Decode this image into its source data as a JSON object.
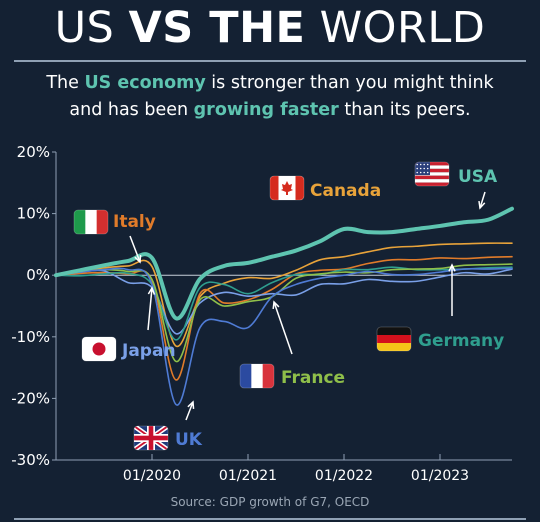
{
  "header": {
    "title_part1": "US ",
    "title_part2": "VS THE",
    "title_part3": " WORLD",
    "subtitle_line1_a": "The ",
    "subtitle_line1_hl": "US economy",
    "subtitle_line1_b": " is stronger than you might think",
    "subtitle_line2_a": "and has been ",
    "subtitle_line2_hl": "growing faster",
    "subtitle_line2_b": " than its peers."
  },
  "source": "Source: GDP growth of G7, OECD",
  "colors": {
    "background": "#142133",
    "accent": "#5ec4b0",
    "usa": "#5ec4b0",
    "canada": "#e8a33a",
    "italy": "#e07b2a",
    "japan": "#7aa0e8",
    "germany": "#2f9e8e",
    "france": "#8fbf4a",
    "uk": "#4f7bd4"
  },
  "chart_data": {
    "type": "line",
    "xlabel": "",
    "ylabel": "",
    "ylim": [
      -30,
      20
    ],
    "xlim": [
      "2019-01",
      "2023-10"
    ],
    "y_ticks": [
      "20%",
      "10%",
      "0%",
      "-10%",
      "-20%",
      "-30%"
    ],
    "y_tick_values": [
      20,
      10,
      0,
      -10,
      -20,
      -30
    ],
    "x_ticks": [
      "01/2020",
      "01/2021",
      "01/2022",
      "01/2023"
    ],
    "x_tick_values": [
      "2020-01",
      "2021-01",
      "2022-01",
      "2023-01"
    ],
    "grid": false,
    "series": [
      {
        "name": "USA",
        "key": "usa",
        "flag": "us-flag-icon",
        "emphasis": true,
        "points": [
          [
            "2019-01",
            0
          ],
          [
            "2019-04",
            0.8
          ],
          [
            "2019-07",
            1.6
          ],
          [
            "2019-10",
            2.3
          ],
          [
            "2020-01",
            2.8
          ],
          [
            "2020-04",
            -7.0
          ],
          [
            "2020-07",
            -0.6
          ],
          [
            "2020-10",
            1.5
          ],
          [
            "2021-01",
            2.0
          ],
          [
            "2021-04",
            3.0
          ],
          [
            "2021-07",
            4.0
          ],
          [
            "2021-10",
            5.5
          ],
          [
            "2022-01",
            7.5
          ],
          [
            "2022-04",
            7.0
          ],
          [
            "2022-07",
            7.0
          ],
          [
            "2022-10",
            7.5
          ],
          [
            "2023-01",
            8.0
          ],
          [
            "2023-04",
            8.6
          ],
          [
            "2023-07",
            9.0
          ],
          [
            "2023-10",
            10.8
          ]
        ]
      },
      {
        "name": "Canada",
        "key": "canada",
        "flag": "canada-flag-icon",
        "points": [
          [
            "2019-01",
            0
          ],
          [
            "2019-04",
            0.7
          ],
          [
            "2019-07",
            1.2
          ],
          [
            "2019-10",
            1.5
          ],
          [
            "2020-01",
            1.4
          ],
          [
            "2020-04",
            -11.5
          ],
          [
            "2020-07",
            -3.5
          ],
          [
            "2020-10",
            -1.3
          ],
          [
            "2021-01",
            -0.4
          ],
          [
            "2021-04",
            -0.5
          ],
          [
            "2021-07",
            0.8
          ],
          [
            "2021-10",
            2.5
          ],
          [
            "2022-01",
            3.0
          ],
          [
            "2022-04",
            3.8
          ],
          [
            "2022-07",
            4.5
          ],
          [
            "2022-10",
            4.7
          ],
          [
            "2023-01",
            5.0
          ],
          [
            "2023-04",
            5.1
          ],
          [
            "2023-07",
            5.2
          ],
          [
            "2023-10",
            5.2
          ]
        ]
      },
      {
        "name": "Italy",
        "key": "italy",
        "flag": "italy-flag-icon",
        "points": [
          [
            "2019-01",
            0
          ],
          [
            "2019-04",
            0.3
          ],
          [
            "2019-07",
            0.4
          ],
          [
            "2019-10",
            0.2
          ],
          [
            "2020-01",
            -0.8
          ],
          [
            "2020-04",
            -17.0
          ],
          [
            "2020-07",
            -3.0
          ],
          [
            "2020-10",
            -4.5
          ],
          [
            "2021-01",
            -4.0
          ],
          [
            "2021-04",
            -2.3
          ],
          [
            "2021-07",
            0.2
          ],
          [
            "2021-10",
            0.8
          ],
          [
            "2022-01",
            1.0
          ],
          [
            "2022-04",
            1.9
          ],
          [
            "2022-07",
            2.5
          ],
          [
            "2022-10",
            2.5
          ],
          [
            "2023-01",
            2.8
          ],
          [
            "2023-04",
            2.7
          ],
          [
            "2023-07",
            2.9
          ],
          [
            "2023-10",
            3.0
          ]
        ]
      },
      {
        "name": "Japan",
        "key": "japan",
        "flag": "japan-flag-icon",
        "points": [
          [
            "2019-01",
            0
          ],
          [
            "2019-04",
            0.5
          ],
          [
            "2019-07",
            0.7
          ],
          [
            "2019-10",
            -1.2
          ],
          [
            "2020-01",
            -2.0
          ],
          [
            "2020-04",
            -9.5
          ],
          [
            "2020-07",
            -4.5
          ],
          [
            "2020-10",
            -2.8
          ],
          [
            "2021-01",
            -3.4
          ],
          [
            "2021-04",
            -3.0
          ],
          [
            "2021-07",
            -3.2
          ],
          [
            "2021-10",
            -1.5
          ],
          [
            "2022-01",
            -1.4
          ],
          [
            "2022-04",
            -0.7
          ],
          [
            "2022-07",
            -1.0
          ],
          [
            "2022-10",
            -1.0
          ],
          [
            "2023-01",
            -0.3
          ],
          [
            "2023-04",
            0.4
          ],
          [
            "2023-07",
            0.2
          ],
          [
            "2023-10",
            1.0
          ]
        ]
      },
      {
        "name": "Germany",
        "key": "germany",
        "flag": "germany-flag-icon",
        "points": [
          [
            "2019-01",
            0
          ],
          [
            "2019-04",
            -0.1
          ],
          [
            "2019-07",
            0.2
          ],
          [
            "2019-10",
            0.3
          ],
          [
            "2020-01",
            -1.5
          ],
          [
            "2020-04",
            -10.5
          ],
          [
            "2020-07",
            -2.0
          ],
          [
            "2020-10",
            -1.5
          ],
          [
            "2021-01",
            -3.0
          ],
          [
            "2021-04",
            -1.2
          ],
          [
            "2021-07",
            0.1
          ],
          [
            "2021-10",
            0.1
          ],
          [
            "2022-01",
            0.9
          ],
          [
            "2022-04",
            0.9
          ],
          [
            "2022-07",
            1.3
          ],
          [
            "2022-10",
            0.9
          ],
          [
            "2023-01",
            0.9
          ],
          [
            "2023-04",
            1.0
          ],
          [
            "2023-07",
            1.2
          ],
          [
            "2023-10",
            1.3
          ]
        ]
      },
      {
        "name": "France",
        "key": "france",
        "flag": "france-flag-icon",
        "points": [
          [
            "2019-01",
            0
          ],
          [
            "2019-04",
            0.6
          ],
          [
            "2019-07",
            0.9
          ],
          [
            "2019-10",
            0.6
          ],
          [
            "2020-01",
            -0.7
          ],
          [
            "2020-04",
            -14.0
          ],
          [
            "2020-07",
            -4.0
          ],
          [
            "2020-10",
            -5.0
          ],
          [
            "2021-01",
            -4.3
          ],
          [
            "2021-04",
            -3.5
          ],
          [
            "2021-07",
            -0.5
          ],
          [
            "2021-10",
            0.2
          ],
          [
            "2022-01",
            0.5
          ],
          [
            "2022-04",
            0.4
          ],
          [
            "2022-07",
            0.9
          ],
          [
            "2022-10",
            1.0
          ],
          [
            "2023-01",
            1.1
          ],
          [
            "2023-04",
            1.6
          ],
          [
            "2023-07",
            1.7
          ],
          [
            "2023-10",
            1.8
          ]
        ]
      },
      {
        "name": "UK",
        "key": "uk",
        "flag": "uk-flag-icon",
        "points": [
          [
            "2019-01",
            0
          ],
          [
            "2019-04",
            0.5
          ],
          [
            "2019-07",
            0.9
          ],
          [
            "2019-10",
            0.9
          ],
          [
            "2020-01",
            -1.5
          ],
          [
            "2020-04",
            -21.0
          ],
          [
            "2020-07",
            -8.5
          ],
          [
            "2020-10",
            -7.5
          ],
          [
            "2021-01",
            -8.5
          ],
          [
            "2021-04",
            -3.5
          ],
          [
            "2021-07",
            -1.5
          ],
          [
            "2021-10",
            -0.5
          ],
          [
            "2022-01",
            0.0
          ],
          [
            "2022-04",
            0.6
          ],
          [
            "2022-07",
            0.1
          ],
          [
            "2022-10",
            0.1
          ],
          [
            "2023-01",
            0.5
          ],
          [
            "2023-04",
            1.0
          ],
          [
            "2023-07",
            1.0
          ],
          [
            "2023-10",
            1.1
          ]
        ]
      }
    ]
  }
}
